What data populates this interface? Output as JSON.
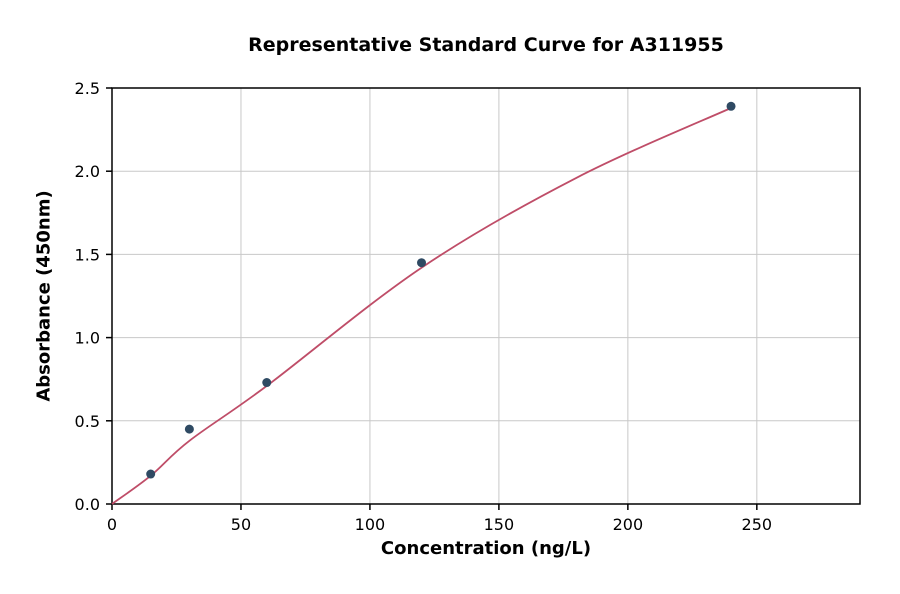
{
  "chart_data": {
    "type": "scatter",
    "title": "Representative Standard Curve for A311955",
    "xlabel": "Concentration (ng/L)",
    "ylabel": "Absorbance (450nm)",
    "xlim": [
      0,
      290
    ],
    "ylim": [
      0,
      2.5
    ],
    "xticks": [
      0,
      50,
      100,
      150,
      200,
      250
    ],
    "yticks": [
      0.0,
      0.5,
      1.0,
      1.5,
      2.0,
      2.5
    ],
    "grid": true,
    "legend": "none",
    "points": {
      "x": [
        15,
        30,
        60,
        120,
        240
      ],
      "y": [
        0.18,
        0.45,
        0.73,
        1.45,
        2.39
      ]
    },
    "curve": {
      "x": [
        0,
        15,
        30,
        60,
        120,
        180,
        240
      ],
      "y": [
        0.0,
        0.17,
        0.38,
        0.71,
        1.42,
        1.96,
        2.38
      ]
    },
    "colors": {
      "point": "#2f4a63",
      "line": "#bf4d68",
      "grid": "#c8c8c8",
      "axis": "#000000",
      "background": "#ffffff"
    }
  }
}
